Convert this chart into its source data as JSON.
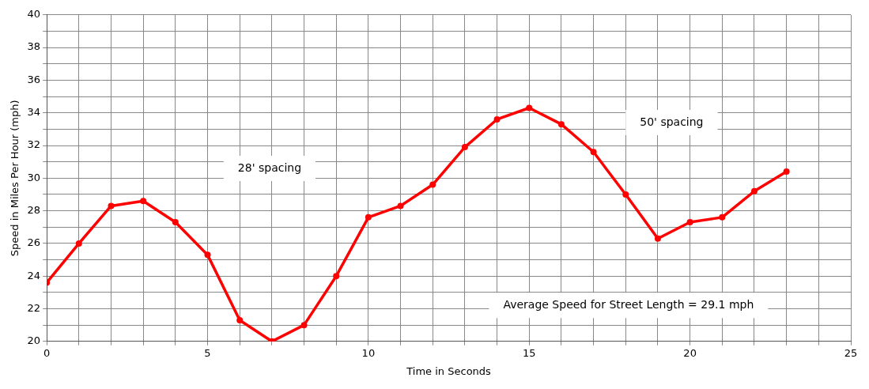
{
  "chart_data": {
    "type": "line",
    "xlabel": "Time in Seconds",
    "ylabel": "Speed in Miles Per Hour (mph)",
    "x": [
      0,
      1,
      2,
      3,
      4,
      5,
      6,
      7,
      8,
      9,
      10,
      11,
      12,
      13,
      14,
      15,
      16,
      17,
      18,
      19,
      20,
      21,
      22,
      23
    ],
    "series": [
      {
        "color": "#ff0000",
        "values": [
          23.6,
          26.0,
          28.3,
          28.6,
          27.3,
          25.3,
          21.3,
          20.0,
          21.0,
          24.0,
          27.6,
          28.3,
          29.6,
          31.9,
          33.6,
          34.3,
          33.3,
          31.6,
          29.0,
          26.3,
          27.3,
          27.6,
          29.2,
          30.4
        ]
      }
    ],
    "xlim": [
      0,
      25
    ],
    "xticks": [
      0,
      {
        "value": 1,
        "label": null
      },
      {
        "value": 2,
        "label": null
      },
      {
        "value": 3,
        "label": null
      },
      {
        "value": 4,
        "label": null
      },
      5,
      {
        "value": 6,
        "label": null
      },
      {
        "value": 7,
        "label": null
      },
      {
        "value": 8,
        "label": null
      },
      {
        "value": 9,
        "label": null
      },
      10,
      {
        "value": 11,
        "label": null
      },
      {
        "value": 12,
        "label": null
      },
      {
        "value": 13,
        "label": null
      },
      {
        "value": 14,
        "label": null
      },
      15,
      {
        "value": 16,
        "label": null
      },
      {
        "value": 17,
        "label": null
      },
      {
        "value": 18,
        "label": null
      },
      {
        "value": 19,
        "label": null
      },
      20,
      {
        "value": 21,
        "label": null
      },
      {
        "value": 22,
        "label": null
      },
      {
        "value": 23,
        "label": null
      },
      {
        "value": 24,
        "label": null
      },
      25
    ],
    "ylim": [
      20,
      40
    ],
    "yticks": [
      20,
      {
        "value": 21,
        "label": null
      },
      22,
      {
        "value": 23,
        "label": null
      },
      24,
      {
        "value": 25,
        "label": null
      },
      26,
      {
        "value": 27,
        "label": null
      },
      28,
      {
        "value": 29,
        "label": null
      },
      30,
      {
        "value": 31,
        "label": null
      },
      32,
      {
        "value": 33,
        "label": null
      },
      34,
      {
        "value": 35,
        "label": null
      },
      36,
      {
        "value": 37,
        "label": null
      },
      38,
      {
        "value": 39,
        "label": null
      },
      40
    ],
    "annotations": [
      "28' spacing",
      "50' spacing",
      "Average Speed for Street Length = 29.1 mph"
    ],
    "grid": true,
    "legend": false,
    "marker": "circle",
    "line_style": "solid"
  }
}
